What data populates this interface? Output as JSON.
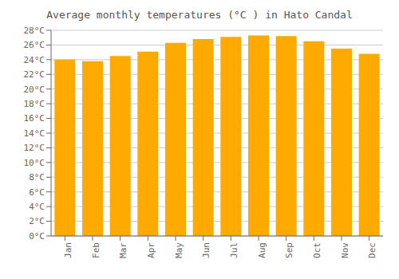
{
  "chart_data": {
    "type": "bar",
    "title": "Average monthly temperatures (°C ) in Hato Candal",
    "categories": [
      "Jan",
      "Feb",
      "Mar",
      "Apr",
      "May",
      "Jun",
      "Jul",
      "Aug",
      "Sep",
      "Oct",
      "Nov",
      "Dec"
    ],
    "values": [
      24.0,
      23.8,
      24.5,
      25.1,
      26.3,
      26.8,
      27.1,
      27.3,
      27.2,
      26.5,
      25.5,
      24.8
    ],
    "color": "#FFAA00",
    "ylim": [
      0,
      28
    ],
    "yticks": [
      {
        "value": 0,
        "label": "0°C"
      },
      {
        "value": 2,
        "label": "2°C"
      },
      {
        "value": 4,
        "label": "4°C"
      },
      {
        "value": 6,
        "label": "6°C"
      },
      {
        "value": 8,
        "label": "8°C"
      },
      {
        "value": 10,
        "label": "10°C"
      },
      {
        "value": 12,
        "label": "12°C"
      },
      {
        "value": 14,
        "label": "14°C"
      },
      {
        "value": 16,
        "label": "16°C"
      },
      {
        "value": 18,
        "label": "18°C"
      },
      {
        "value": 20,
        "label": "20°C"
      },
      {
        "value": 22,
        "label": "22°C"
      },
      {
        "value": 24,
        "label": "24°C"
      },
      {
        "value": 26,
        "label": "26°C"
      },
      {
        "value": 28,
        "label": "28°C"
      }
    ],
    "grid": true
  }
}
